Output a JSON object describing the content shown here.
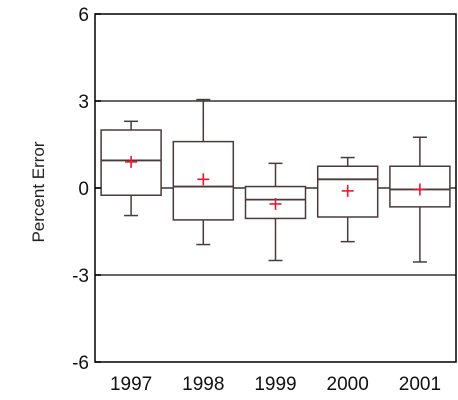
{
  "chart_data": {
    "type": "box",
    "categories": [
      "1997",
      "1998",
      "1999",
      "2000",
      "2001"
    ],
    "ylabel": "Percent Error",
    "xlabel": "",
    "title": "",
    "ylim": [
      -6,
      6
    ],
    "yticks": [
      -6,
      -3,
      0,
      3,
      6
    ],
    "ytick_labels": [
      "-6",
      "-3",
      "0",
      "3",
      "6"
    ],
    "reference_lines": [
      3,
      0,
      -3
    ],
    "boxes": [
      {
        "category": "1997",
        "min": -0.95,
        "q1": -0.25,
        "median": 0.95,
        "q3": 2.0,
        "max": 2.3,
        "mean": 0.9
      },
      {
        "category": "1998",
        "min": -1.95,
        "q1": -1.1,
        "median": 0.05,
        "q3": 1.6,
        "max": 3.05,
        "mean": 0.3
      },
      {
        "category": "1999",
        "min": -2.5,
        "q1": -1.05,
        "median": -0.4,
        "q3": 0.05,
        "max": 0.85,
        "mean": -0.55
      },
      {
        "category": "2000",
        "min": -1.85,
        "q1": -1.0,
        "median": 0.3,
        "q3": 0.75,
        "max": 1.05,
        "mean": -0.1
      },
      {
        "category": "2001",
        "min": -2.55,
        "q1": -0.65,
        "median": -0.05,
        "q3": 0.75,
        "max": 1.75,
        "mean": -0.05
      }
    ],
    "grid": false,
    "colors": {
      "frame": "#000000",
      "box": "#4a3a3a",
      "mean_marker": "#e8192c",
      "reference": "#333333"
    }
  }
}
